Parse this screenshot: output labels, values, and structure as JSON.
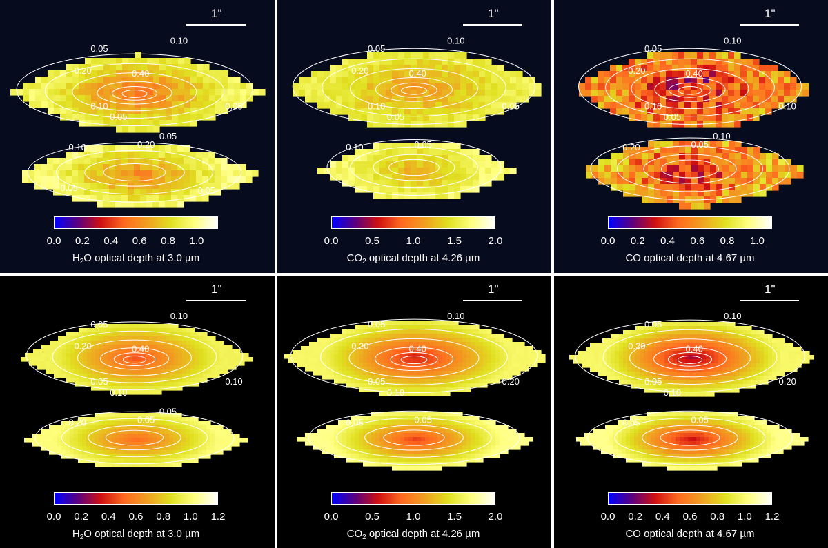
{
  "panels": [
    {
      "id": "obs-h2o",
      "scale_label": "1\"",
      "species": "H",
      "subscript": "2",
      "rest": "O optical depth at 3.0 µm",
      "ticks": [
        "0.0",
        "0.2",
        "0.4",
        "0.6",
        "0.8",
        "1.0"
      ],
      "contour_labels": [
        "0.05",
        "0.10",
        "0.20",
        "0.40",
        "0.10",
        "0.05",
        "0.05",
        "0.10",
        "0.20",
        "0.05",
        "0.05",
        "0.05"
      ]
    },
    {
      "id": "obs-co2",
      "scale_label": "1\"",
      "species": "CO",
      "subscript": "2",
      "rest": " optical depth at 4.26 µm",
      "ticks": [
        "0.0",
        "0.5",
        "1.0",
        "1.5",
        "2.0"
      ],
      "contour_labels": [
        "0.05",
        "0.10",
        "0.20",
        "0.40",
        "0.10",
        "0.05",
        "0.05",
        "0.10",
        "0.05"
      ]
    },
    {
      "id": "obs-co",
      "scale_label": "1\"",
      "species": "CO",
      "subscript": "",
      "rest": " optical depth at 4.67 µm",
      "ticks": [
        "0.0",
        "0.2",
        "0.4",
        "0.6",
        "0.8",
        "1.0"
      ],
      "contour_labels": [
        "0.05",
        "0.10",
        "0.20",
        "0.40",
        "0.10",
        "0.05",
        "0.10",
        "0.20",
        "0.05",
        "0.10"
      ]
    },
    {
      "id": "model-h2o",
      "scale_label": "1\"",
      "species": "H",
      "subscript": "2",
      "rest": "O optical depth at 3.0 µm",
      "ticks": [
        "0.0",
        "0.2",
        "0.4",
        "0.6",
        "0.8",
        "1.0",
        "1.2"
      ],
      "contour_labels": [
        "0.05",
        "0.10",
        "0.20",
        "0.40",
        "0.05",
        "0.10",
        "0.10",
        "0.20",
        "0.05",
        "0.05"
      ]
    },
    {
      "id": "model-co2",
      "scale_label": "1\"",
      "species": "CO",
      "subscript": "2",
      "rest": " optical depth at 4.26 µm",
      "ticks": [
        "0.0",
        "0.5",
        "1.0",
        "1.5",
        "2.0"
      ],
      "contour_labels": [
        "0.05",
        "0.10",
        "0.20",
        "0.40",
        "0.05",
        "0.10",
        "0.20",
        "0.05",
        "0.05"
      ]
    },
    {
      "id": "model-co",
      "scale_label": "1\"",
      "species": "CO",
      "subscript": "",
      "rest": " optical depth at 4.67 µm",
      "ticks": [
        "0.0",
        "0.2",
        "0.4",
        "0.6",
        "0.8",
        "1.0",
        "1.2"
      ],
      "contour_labels": [
        "0.05",
        "0.10",
        "0.20",
        "0.40",
        "0.05",
        "0.10",
        "0.20",
        "0.05",
        "0.05"
      ]
    }
  ],
  "chart_data": {
    "type": "heatmap",
    "layout": "2 rows x 3 columns; top row observed maps (pixelated, dark navy background), bottom row smooth model maps (black background)",
    "colormap": [
      "#0000ff",
      "#5a0080",
      "#d01010",
      "#ff6a20",
      "#f0a020",
      "#e0e020",
      "#ffff80",
      "#ffffff"
    ],
    "contour_levels": [
      0.05,
      0.1,
      0.2,
      0.4
    ],
    "scale_bar": "1\"",
    "maps": [
      {
        "row": "observed",
        "species": "H2O",
        "wavelength": "3.0 µm",
        "colorbar_range": [
          0.0,
          1.15
        ],
        "colorbar_ticks": [
          0.0,
          0.2,
          0.4,
          0.6,
          0.8,
          1.0
        ]
      },
      {
        "row": "observed",
        "species": "CO2",
        "wavelength": "4.26 µm",
        "colorbar_range": [
          0.0,
          2.0
        ],
        "colorbar_ticks": [
          0.0,
          0.5,
          1.0,
          1.5,
          2.0
        ]
      },
      {
        "row": "observed",
        "species": "CO",
        "wavelength": "4.67 µm",
        "colorbar_range": [
          0.0,
          1.1
        ],
        "colorbar_ticks": [
          0.0,
          0.2,
          0.4,
          0.6,
          0.8,
          1.0
        ]
      },
      {
        "row": "model",
        "species": "H2O",
        "wavelength": "3.0 µm",
        "colorbar_range": [
          0.0,
          1.2
        ],
        "colorbar_ticks": [
          0.0,
          0.2,
          0.4,
          0.6,
          0.8,
          1.0,
          1.2
        ]
      },
      {
        "row": "model",
        "species": "CO2",
        "wavelength": "4.26 µm",
        "colorbar_range": [
          0.0,
          2.0
        ],
        "colorbar_ticks": [
          0.0,
          0.5,
          1.0,
          1.5,
          2.0
        ]
      },
      {
        "row": "model",
        "species": "CO",
        "wavelength": "4.67 µm",
        "colorbar_range": [
          0.0,
          1.2
        ],
        "colorbar_ticks": [
          0.0,
          0.2,
          0.4,
          0.6,
          0.8,
          1.0,
          1.2
        ]
      }
    ]
  }
}
